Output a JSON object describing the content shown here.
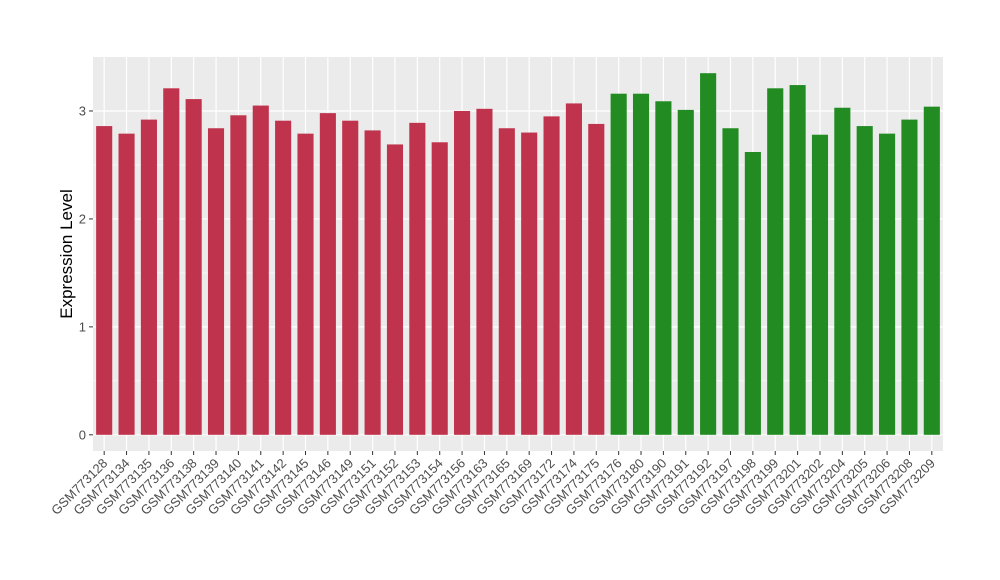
{
  "chart_data": {
    "type": "bar",
    "title": "",
    "xlabel": "",
    "ylabel": "Expression Level",
    "ylim": [
      -0.15,
      3.5
    ],
    "yticks": [
      0,
      1,
      2,
      3
    ],
    "grid": true,
    "legend": "none",
    "colors": {
      "group1": "#C0334D",
      "group2": "#228B22",
      "panel": "#EBEBEB",
      "grid": "#FFFFFF"
    },
    "categories": [
      "GSM773128",
      "GSM773134",
      "GSM773135",
      "GSM773136",
      "GSM773138",
      "GSM773139",
      "GSM773140",
      "GSM773141",
      "GSM773142",
      "GSM773145",
      "GSM773146",
      "GSM773149",
      "GSM773151",
      "GSM773152",
      "GSM773153",
      "GSM773154",
      "GSM773156",
      "GSM773163",
      "GSM773165",
      "GSM773169",
      "GSM773172",
      "GSM773174",
      "GSM773175",
      "GSM773176",
      "GSM773180",
      "GSM773190",
      "GSM773191",
      "GSM773192",
      "GSM773197",
      "GSM773198",
      "GSM773199",
      "GSM773201",
      "GSM773202",
      "GSM773204",
      "GSM773205",
      "GSM773206",
      "GSM773208",
      "GSM773209"
    ],
    "values": [
      2.86,
      2.79,
      2.92,
      3.21,
      3.11,
      2.84,
      2.96,
      3.05,
      2.91,
      2.79,
      2.98,
      2.91,
      2.82,
      2.69,
      2.89,
      2.71,
      3.0,
      3.02,
      2.84,
      2.8,
      2.95,
      3.07,
      2.88,
      3.16,
      3.16,
      3.09,
      3.01,
      3.35,
      2.84,
      2.62,
      3.21,
      3.24,
      2.78,
      3.03,
      2.86,
      2.79,
      2.92,
      3.04
    ],
    "group": [
      1,
      1,
      1,
      1,
      1,
      1,
      1,
      1,
      1,
      1,
      1,
      1,
      1,
      1,
      1,
      1,
      1,
      1,
      1,
      1,
      1,
      1,
      1,
      2,
      2,
      2,
      2,
      2,
      2,
      2,
      2,
      2,
      2,
      2,
      2,
      2,
      2,
      2
    ]
  }
}
